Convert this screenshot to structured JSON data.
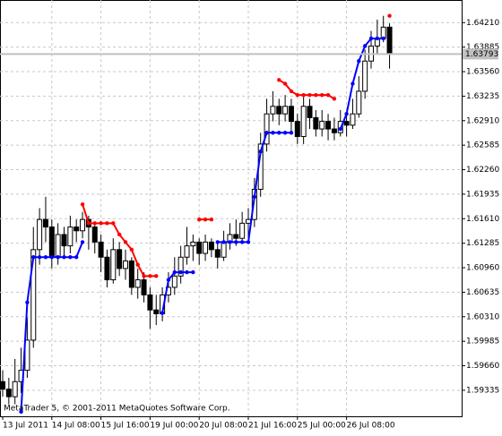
{
  "chart_data": {
    "type": "candlestick",
    "annotation": "MetaTrader 5, © 2001-2011 MetaQuotes Software Corp.",
    "current_price": 1.63793,
    "categories": [
      "13 Jul 2011",
      null,
      null,
      null,
      null,
      null,
      null,
      null,
      "14 Jul 08:00",
      null,
      null,
      null,
      null,
      null,
      null,
      null,
      "15 Jul 16:00",
      null,
      null,
      null,
      null,
      null,
      null,
      null,
      "19 Jul 00:00",
      null,
      null,
      null,
      null,
      null,
      null,
      null,
      "20 Jul 08:00",
      null,
      null,
      null,
      null,
      null,
      null,
      null,
      "21 Jul 16:00",
      null,
      null,
      null,
      null,
      null,
      null,
      null,
      "25 Jul 00:00",
      null,
      null,
      null,
      null,
      null,
      null,
      null,
      "26 Jul 08:00",
      null,
      null,
      null,
      null,
      null,
      null,
      null
    ],
    "open": [
      1.5945,
      1.5935,
      1.5925,
      1.5945,
      1.596,
      1.6,
      1.612,
      1.616,
      1.615,
      1.611,
      1.614,
      1.6125,
      1.615,
      1.6145,
      1.616,
      1.615,
      1.613,
      1.611,
      1.608,
      1.612,
      1.6095,
      1.6105,
      1.607,
      1.608,
      1.606,
      1.604,
      1.6035,
      1.606,
      1.607,
      1.6085,
      1.611,
      1.6125,
      1.613,
      1.6115,
      1.613,
      1.612,
      1.611,
      1.613,
      1.614,
      1.6135,
      1.6155,
      1.616,
      1.62,
      1.626,
      1.63,
      1.631,
      1.63,
      1.631,
      1.629,
      1.627,
      1.631,
      1.6295,
      1.628,
      1.629,
      1.628,
      1.6275,
      1.629,
      1.6285,
      1.63,
      1.633,
      1.637,
      1.639,
      1.64,
      1.6415
    ],
    "high": [
      1.596,
      1.595,
      1.5975,
      1.599,
      1.603,
      1.615,
      1.6175,
      1.619,
      1.616,
      1.6155,
      1.615,
      1.6165,
      1.616,
      1.617,
      1.6165,
      1.6155,
      1.614,
      1.612,
      1.6135,
      1.613,
      1.612,
      1.611,
      1.6095,
      1.609,
      1.607,
      1.606,
      1.607,
      1.609,
      1.611,
      1.6125,
      1.615,
      1.614,
      1.6135,
      1.614,
      1.6135,
      1.613,
      1.6145,
      1.6155,
      1.616,
      1.617,
      1.6175,
      1.6215,
      1.6275,
      1.632,
      1.633,
      1.632,
      1.6325,
      1.632,
      1.63,
      1.6325,
      1.632,
      1.6305,
      1.6305,
      1.63,
      1.6295,
      1.6305,
      1.63,
      1.632,
      1.635,
      1.6385,
      1.641,
      1.6425,
      1.643,
      1.642
    ],
    "low": [
      1.5925,
      1.5915,
      1.5915,
      1.593,
      1.595,
      1.599,
      1.61,
      1.613,
      1.6095,
      1.61,
      1.611,
      1.6115,
      1.613,
      1.6135,
      1.612,
      1.6115,
      1.609,
      1.607,
      1.6075,
      1.6085,
      1.608,
      1.606,
      1.6055,
      1.605,
      1.6015,
      1.602,
      1.6025,
      1.605,
      1.606,
      1.6075,
      1.61,
      1.6105,
      1.61,
      1.6105,
      1.611,
      1.6095,
      1.6105,
      1.612,
      1.6125,
      1.613,
      1.613,
      1.615,
      1.619,
      1.625,
      1.629,
      1.6285,
      1.629,
      1.6275,
      1.626,
      1.626,
      1.628,
      1.627,
      1.627,
      1.6265,
      1.6265,
      1.627,
      1.627,
      1.628,
      1.6295,
      1.632,
      1.636,
      1.638,
      1.6395,
      1.636
    ],
    "close": [
      1.5935,
      1.5925,
      1.5945,
      1.596,
      1.6,
      1.612,
      1.616,
      1.615,
      1.611,
      1.614,
      1.6125,
      1.615,
      1.6145,
      1.616,
      1.615,
      1.613,
      1.611,
      1.608,
      1.612,
      1.6095,
      1.6105,
      1.607,
      1.608,
      1.606,
      1.604,
      1.6035,
      1.606,
      1.607,
      1.6085,
      1.611,
      1.6125,
      1.613,
      1.6115,
      1.613,
      1.612,
      1.611,
      1.613,
      1.614,
      1.6135,
      1.6155,
      1.616,
      1.62,
      1.626,
      1.63,
      1.631,
      1.63,
      1.631,
      1.629,
      1.627,
      1.631,
      1.6295,
      1.628,
      1.629,
      1.628,
      1.6275,
      1.629,
      1.6285,
      1.63,
      1.633,
      1.637,
      1.639,
      1.64,
      1.6415,
      1.638
    ],
    "lines": [
      {
        "color": "#ff0000",
        "values": [
          null,
          null,
          null,
          null,
          null,
          null,
          null,
          null,
          null,
          null,
          null,
          null,
          null,
          1.618,
          1.6155,
          1.6155,
          1.6155,
          1.6155,
          1.6155,
          1.614,
          1.613,
          1.612,
          1.61,
          1.6085,
          1.6085,
          1.6085,
          null,
          null,
          null,
          null,
          null,
          null,
          1.616,
          1.616,
          1.616,
          null,
          null,
          null,
          null,
          null,
          null,
          null,
          null,
          null,
          null,
          1.6345,
          1.634,
          1.633,
          1.6325,
          1.6325,
          1.6325,
          1.6325,
          1.6325,
          1.6325,
          1.632,
          null,
          null,
          null,
          null,
          null,
          null,
          null,
          null,
          1.643
        ]
      },
      {
        "color": "#0000ff",
        "values": [
          null,
          null,
          null,
          1.5905,
          1.605,
          1.611,
          1.611,
          1.611,
          1.611,
          1.611,
          1.611,
          1.611,
          1.611,
          1.613,
          null,
          null,
          null,
          null,
          null,
          null,
          null,
          null,
          null,
          null,
          null,
          null,
          1.6036,
          1.608,
          1.609,
          1.609,
          1.609,
          1.609,
          null,
          null,
          null,
          1.613,
          1.613,
          1.613,
          1.613,
          1.613,
          1.613,
          1.619,
          1.625,
          1.6275,
          1.6275,
          1.6275,
          1.6275,
          1.6275,
          null,
          null,
          null,
          null,
          null,
          null,
          null,
          1.628,
          1.63,
          1.634,
          1.637,
          1.639,
          1.64,
          1.64,
          1.64,
          null
        ]
      }
    ],
    "ylim": [
      1.5899,
      1.6451
    ],
    "yticks": [
      1.59335,
      {
        "value": 1.5966,
        "label": "1.59660"
      },
      1.59985,
      {
        "value": 1.6031,
        "label": "1.60310"
      },
      1.60635,
      {
        "value": 1.6096,
        "label": "1.60960"
      },
      1.61285,
      {
        "value": 1.6161,
        "label": "1.61610"
      },
      1.61935,
      {
        "value": 1.6226,
        "label": "1.62260"
      },
      1.62585,
      {
        "value": 1.6291,
        "label": "1.62910"
      },
      1.63235,
      {
        "value": 1.6356,
        "label": "1.63560"
      },
      1.63885,
      {
        "value": 1.6421,
        "label": "1.64210"
      }
    ],
    "grid": true
  }
}
